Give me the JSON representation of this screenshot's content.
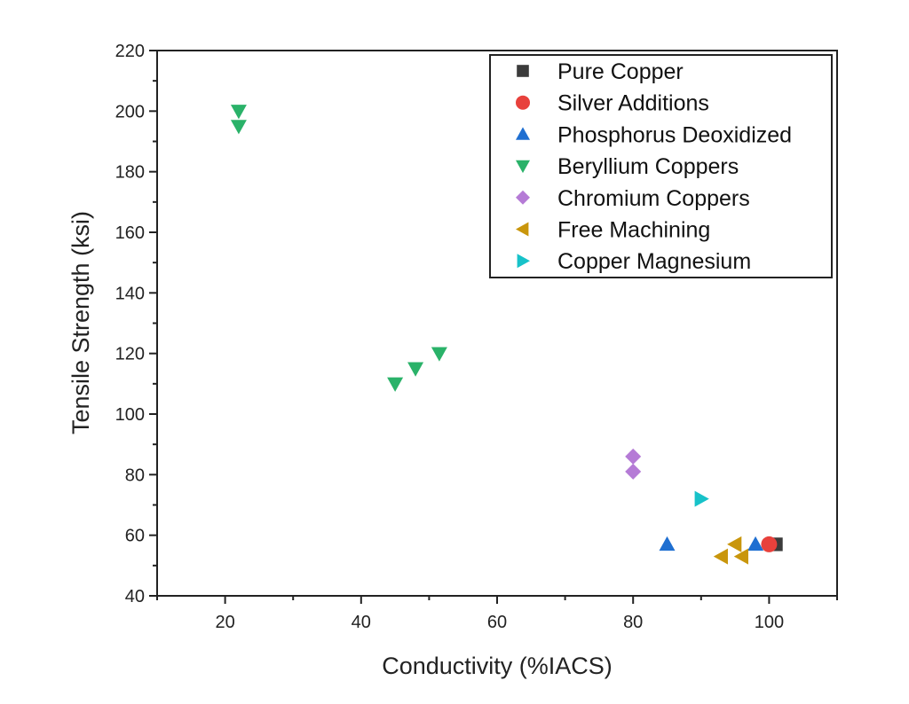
{
  "chart_data": {
    "type": "scatter",
    "title": "",
    "xlabel": "Conductivity (%IACS)",
    "ylabel": "Tensile Strength (ksi)",
    "xlim": [
      10,
      110
    ],
    "ylim": [
      40,
      220
    ],
    "x_ticks": [
      20,
      40,
      60,
      80,
      100
    ],
    "y_ticks": [
      40,
      60,
      80,
      100,
      120,
      140,
      160,
      180,
      200,
      220
    ],
    "grid": false,
    "legend_position": "top-right",
    "series": [
      {
        "name": "Pure Copper",
        "marker": "square",
        "color": "#3b3b3b",
        "x": [
          101
        ],
        "y": [
          57
        ]
      },
      {
        "name": "Silver Additions",
        "marker": "circle",
        "color": "#e8413c",
        "x": [
          100
        ],
        "y": [
          57
        ]
      },
      {
        "name": "Phosphorus Deoxidized",
        "marker": "triangle-up",
        "color": "#1f6fd1",
        "x": [
          85,
          98
        ],
        "y": [
          57,
          57
        ]
      },
      {
        "name": "Beryllium Coppers",
        "marker": "triangle-down",
        "color": "#2ab269",
        "x": [
          22,
          22,
          45,
          48,
          51.5
        ],
        "y": [
          200,
          195,
          110,
          115,
          120
        ]
      },
      {
        "name": "Chromium Coppers",
        "marker": "diamond",
        "color": "#b57bd6",
        "x": [
          80,
          80
        ],
        "y": [
          86,
          81
        ]
      },
      {
        "name": "Free Machining",
        "marker": "triangle-left",
        "color": "#c9960c",
        "x": [
          93,
          95,
          96
        ],
        "y": [
          53,
          57,
          53
        ]
      },
      {
        "name": "Copper Magnesium",
        "marker": "triangle-right",
        "color": "#17c2c9",
        "x": [
          90
        ],
        "y": [
          72
        ]
      }
    ]
  }
}
